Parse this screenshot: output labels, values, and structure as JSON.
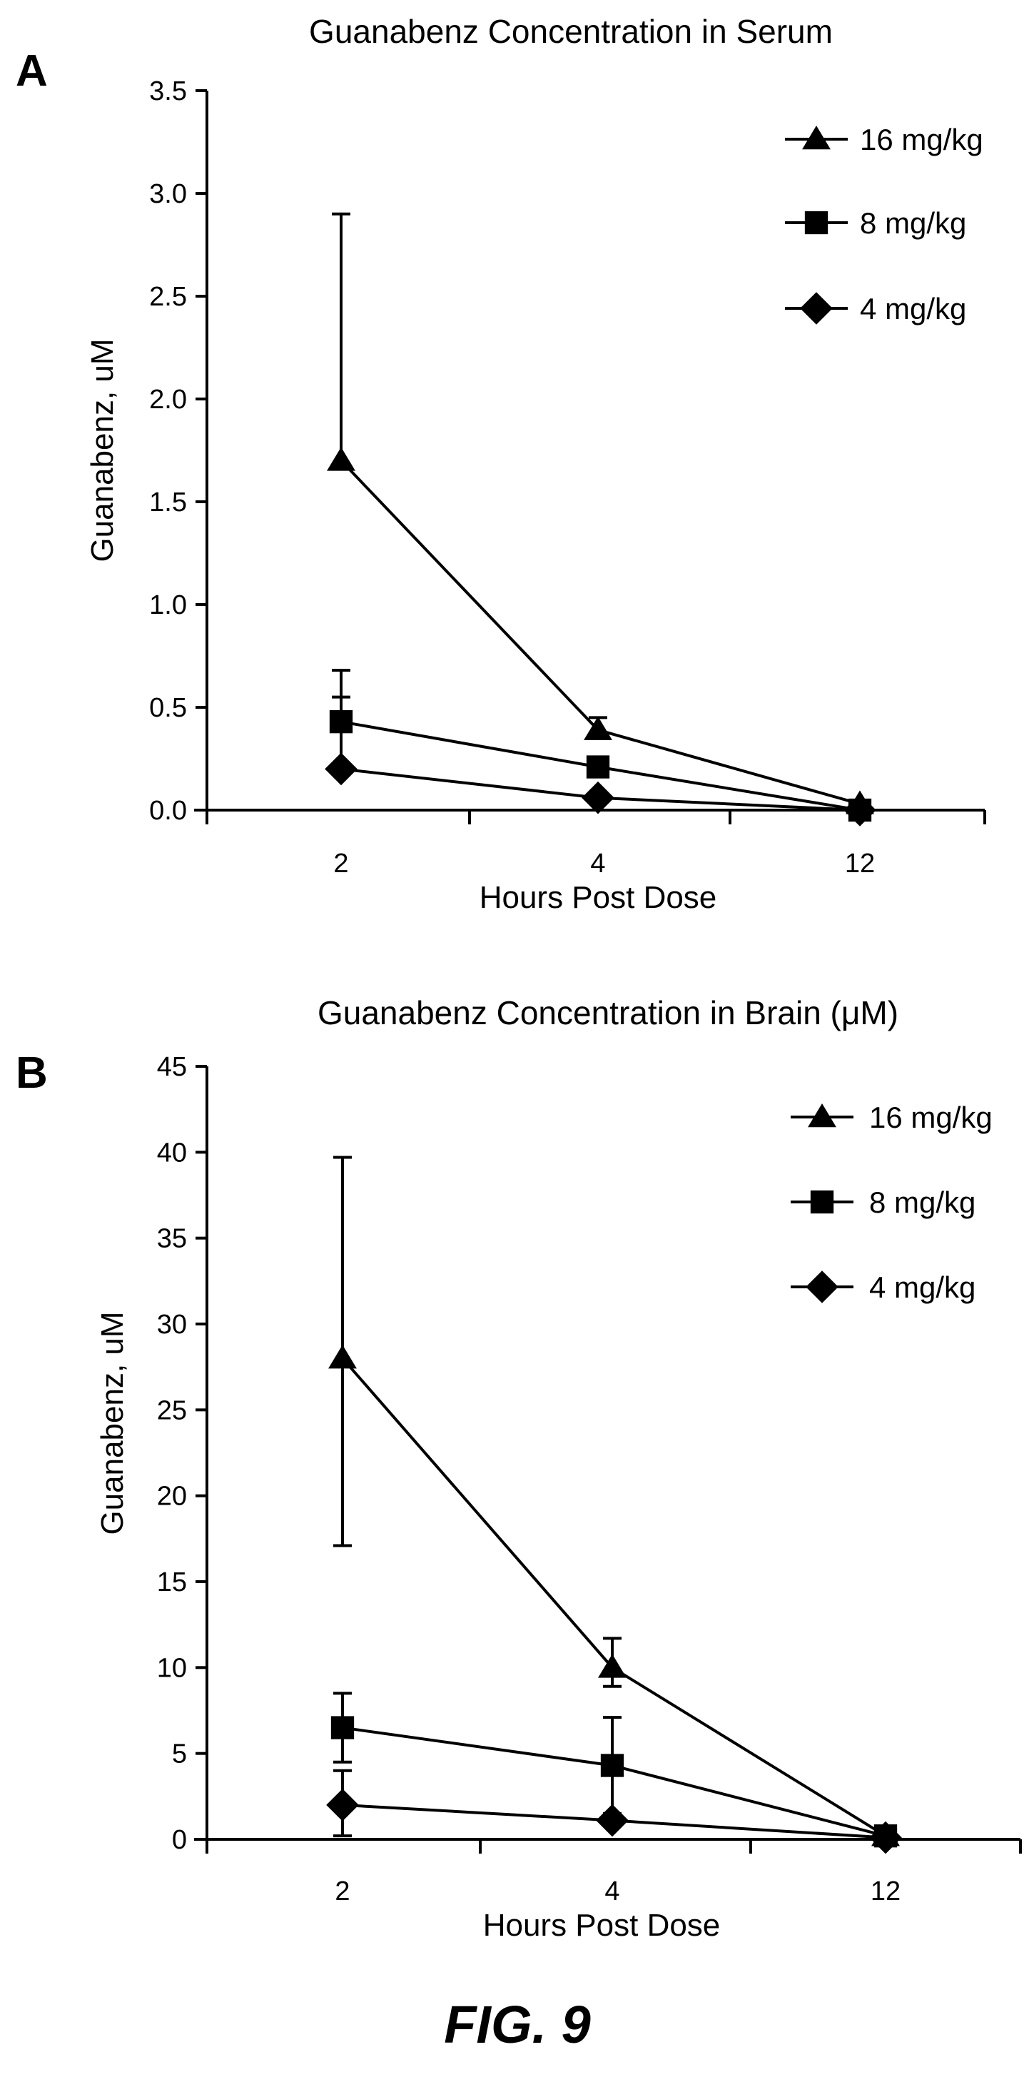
{
  "figure": {
    "caption": "FIG. 9"
  },
  "chart_data": [
    {
      "panel_label": "A",
      "type": "line",
      "title": "Guanabenz Concentration in Serum",
      "xlabel": "Hours Post Dose",
      "ylabel": "Guanabenz, uM",
      "categories": [
        "2",
        "4",
        "12"
      ],
      "ylim": [
        0,
        3.5
      ],
      "yticks": [
        "0.0",
        "0.5",
        "1.0",
        "1.5",
        "2.0",
        "2.5",
        "3.0",
        "3.5"
      ],
      "grid": false,
      "legend_position": "top-right",
      "series": [
        {
          "name": "16 mg/kg",
          "marker": "triangle",
          "values": [
            1.7,
            0.39,
            0.03
          ],
          "error_upper": [
            2.9,
            0.45,
            null
          ]
        },
        {
          "name": "8 mg/kg",
          "marker": "square",
          "values": [
            0.43,
            0.21,
            0.0
          ],
          "error_upper": [
            0.68,
            null,
            null
          ]
        },
        {
          "name": "4 mg/kg",
          "marker": "diamond",
          "values": [
            0.2,
            0.06,
            0.0
          ],
          "error_upper": [
            0.55,
            null,
            null
          ]
        }
      ]
    },
    {
      "panel_label": "B",
      "type": "line",
      "title": "Guanabenz Concentration in Brain (μM)",
      "xlabel": "Hours Post Dose",
      "ylabel": "Guanabenz, uM",
      "categories": [
        "2",
        "4",
        "12"
      ],
      "ylim": [
        0,
        45
      ],
      "yticks": [
        "0",
        "5",
        "10",
        "15",
        "20",
        "25",
        "30",
        "35",
        "40",
        "45"
      ],
      "grid": false,
      "legend_position": "top-right",
      "series": [
        {
          "name": "16 mg/kg",
          "marker": "triangle",
          "values": [
            28.0,
            10.0,
            0.2
          ],
          "error_upper": [
            39.7,
            11.7,
            null
          ],
          "error_lower": [
            17.1,
            8.9,
            null
          ]
        },
        {
          "name": "8 mg/kg",
          "marker": "square",
          "values": [
            6.5,
            4.3,
            0.2
          ],
          "error_upper": [
            8.5,
            7.1,
            null
          ],
          "error_lower": [
            4.5,
            1.5,
            null
          ]
        },
        {
          "name": "4 mg/kg",
          "marker": "diamond",
          "values": [
            2.0,
            1.1,
            0.1
          ],
          "error_upper": [
            4.0,
            null,
            null
          ],
          "error_lower": [
            0.2,
            null,
            null
          ]
        }
      ]
    }
  ],
  "colors": {
    "ink": "#000000",
    "background": "#ffffff"
  }
}
